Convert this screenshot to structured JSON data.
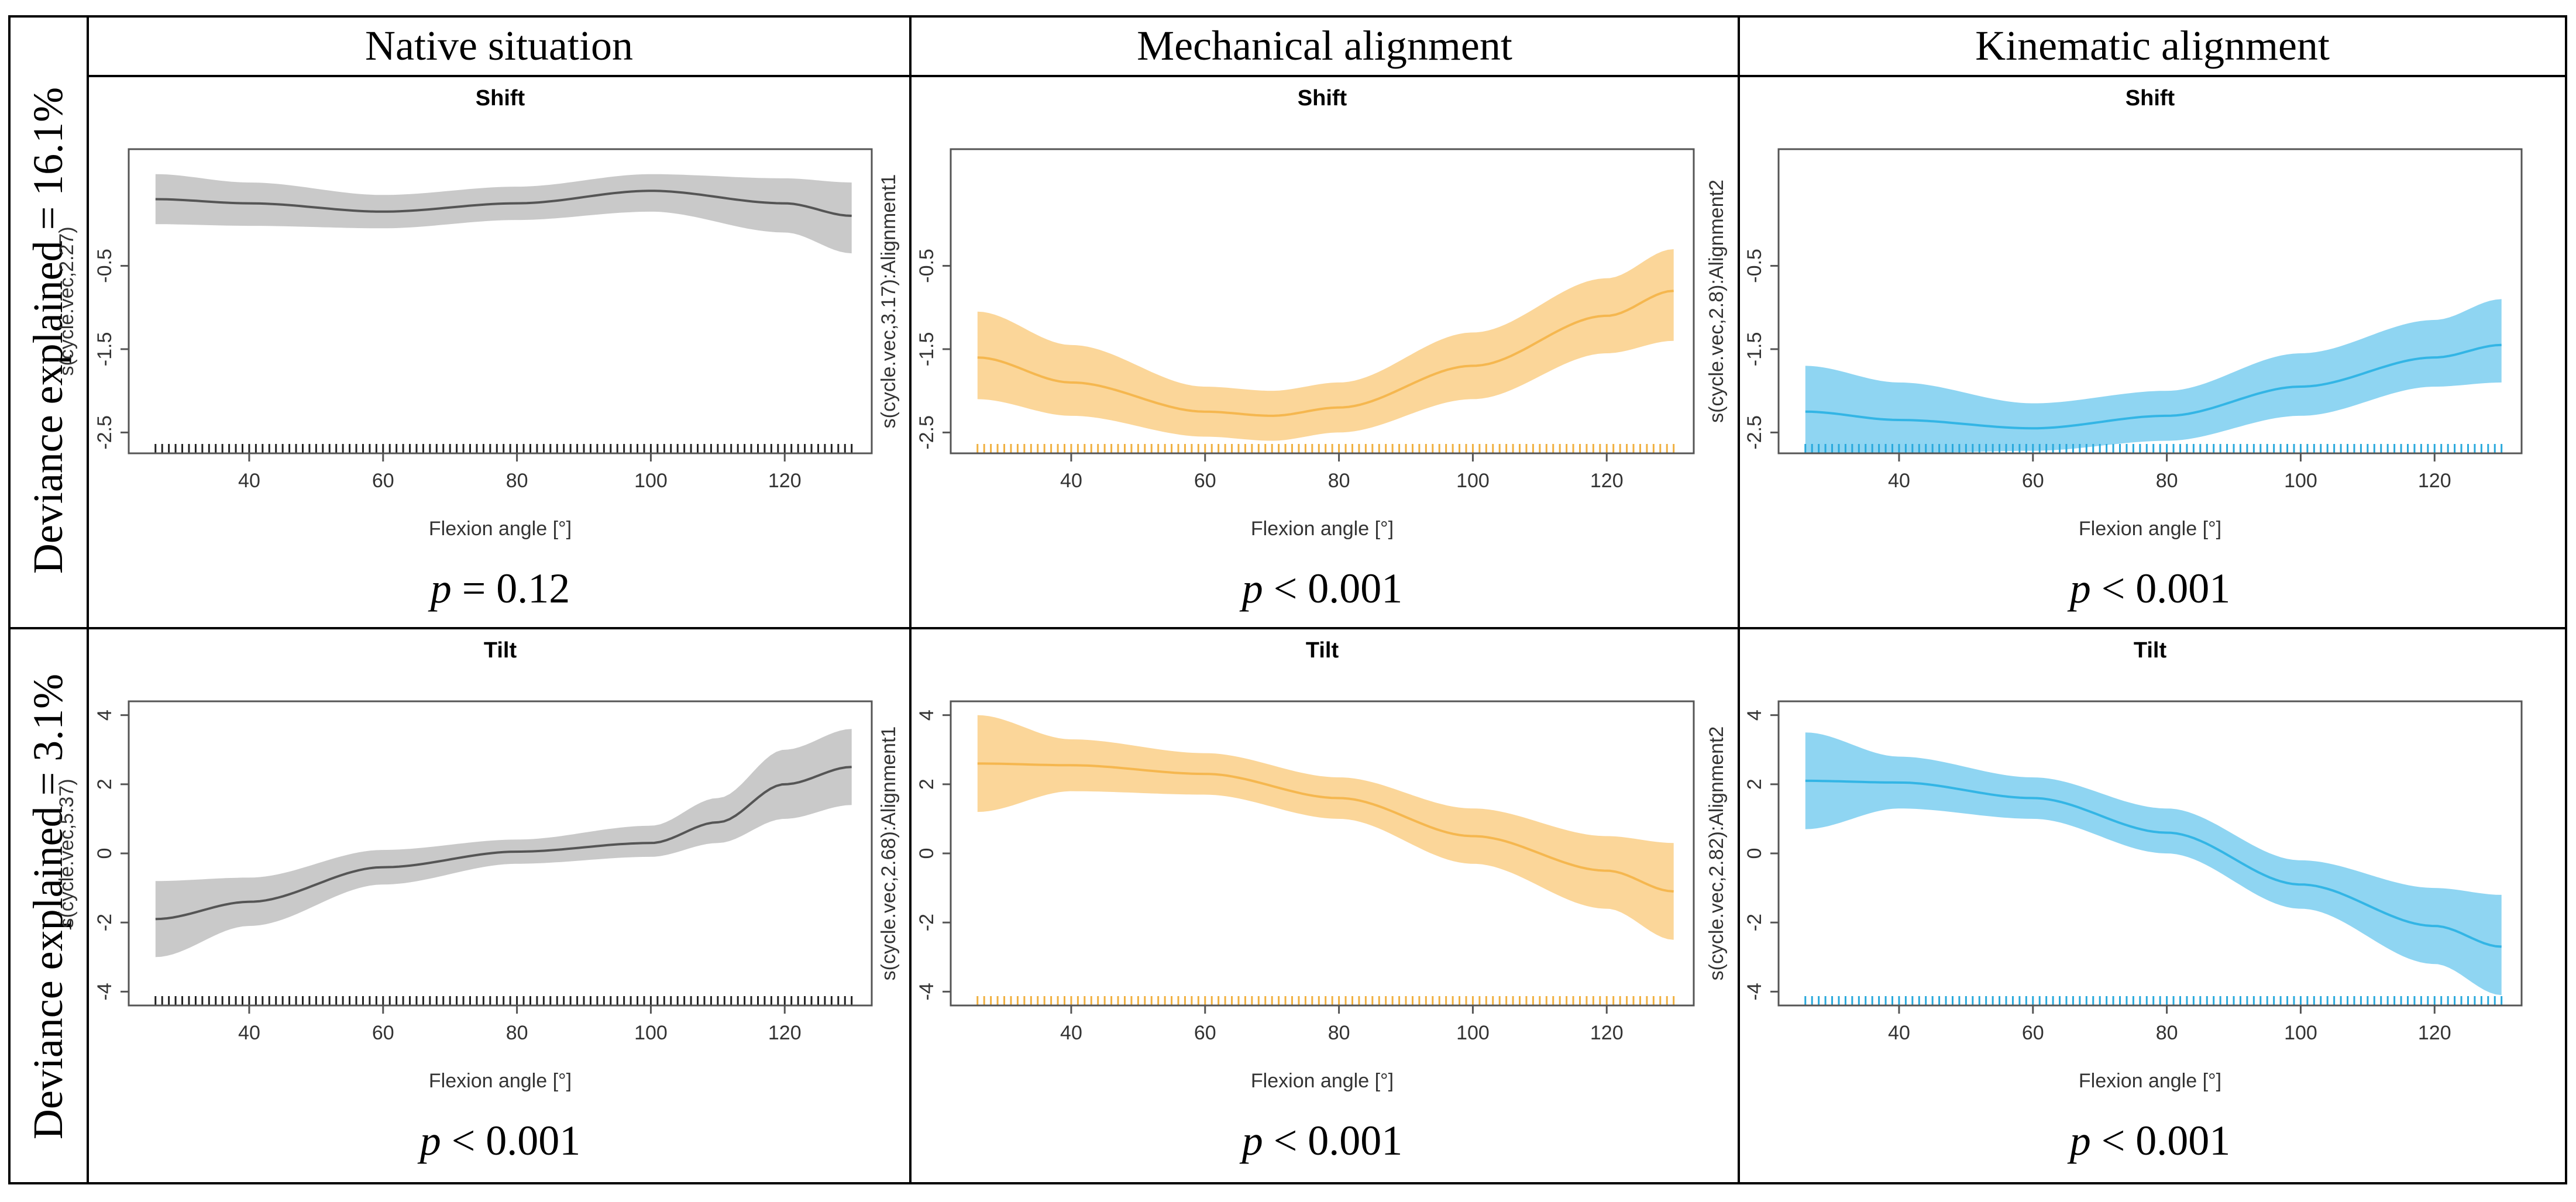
{
  "header": {
    "columns": [
      "Native situation",
      "Mechanical alignment",
      "Kinematic alignment"
    ]
  },
  "rows": [
    {
      "label": "Deviance explained = 16.1%"
    },
    {
      "label": "Deviance explained = 3.1%"
    }
  ],
  "colors": {
    "native": {
      "line": "#555555",
      "band": "#c9c9c9",
      "rug": "#222222"
    },
    "mechanical": {
      "line": "#f5b74f",
      "band": "#fbd699",
      "rug": "#f0b040"
    },
    "kinematic": {
      "line": "#33b5e5",
      "band": "#8fd5f2",
      "rug": "#29a9dc"
    }
  },
  "chart_data": [
    {
      "type": "line",
      "title": "Shift",
      "xlabel": "Flexion angle [°]",
      "ylabel": "s(cycle.vec,2.27)",
      "xlim": [
        22,
        133
      ],
      "ylim": [
        -2.75,
        0.9
      ],
      "xticks": [
        40,
        60,
        80,
        100,
        120
      ],
      "yticks": [
        -0.5,
        -1.5,
        -2.5
      ],
      "x": [
        26,
        40,
        60,
        80,
        100,
        120,
        130
      ],
      "y": [
        0.3,
        0.25,
        0.15,
        0.25,
        0.4,
        0.25,
        0.1
      ],
      "lower": [
        0.0,
        -0.02,
        -0.05,
        0.05,
        0.15,
        -0.1,
        -0.35
      ],
      "upper": [
        0.6,
        0.5,
        0.35,
        0.45,
        0.6,
        0.55,
        0.5
      ],
      "rug": true,
      "color": "native",
      "p_prefix": "=",
      "p_value": "0.12"
    },
    {
      "type": "line",
      "title": "Shift",
      "xlabel": "Flexion angle [°]",
      "ylabel": "s(cycle.vec,3.17):Alignment1",
      "xlim": [
        22,
        133
      ],
      "ylim": [
        -2.75,
        0.9
      ],
      "xticks": [
        40,
        60,
        80,
        100,
        120
      ],
      "yticks": [
        -0.5,
        -1.5,
        -2.5
      ],
      "x": [
        26,
        40,
        60,
        70,
        80,
        100,
        120,
        130
      ],
      "y": [
        -1.6,
        -1.9,
        -2.25,
        -2.3,
        -2.2,
        -1.7,
        -1.1,
        -0.8
      ],
      "lower": [
        -2.1,
        -2.3,
        -2.55,
        -2.6,
        -2.5,
        -2.1,
        -1.55,
        -1.4
      ],
      "upper": [
        -1.05,
        -1.45,
        -1.95,
        -2.0,
        -1.9,
        -1.3,
        -0.65,
        -0.3
      ],
      "rug": true,
      "color": "mechanical",
      "p_prefix": "<",
      "p_value": "0.001"
    },
    {
      "type": "line",
      "title": "Shift",
      "xlabel": "Flexion angle [°]",
      "ylabel": "s(cycle.vec,2.8):Alignment2",
      "xlim": [
        22,
        133
      ],
      "ylim": [
        -2.75,
        0.9
      ],
      "xticks": [
        40,
        60,
        80,
        100,
        120
      ],
      "yticks": [
        -0.5,
        -1.5,
        -2.5
      ],
      "x": [
        26,
        40,
        60,
        80,
        100,
        120,
        130
      ],
      "y": [
        -2.25,
        -2.35,
        -2.45,
        -2.3,
        -1.95,
        -1.6,
        -1.45
      ],
      "lower": [
        -2.75,
        -2.75,
        -2.72,
        -2.6,
        -2.3,
        -1.95,
        -1.9
      ],
      "upper": [
        -1.7,
        -1.9,
        -2.15,
        -2.0,
        -1.55,
        -1.15,
        -0.9
      ],
      "rug": true,
      "color": "kinematic",
      "p_prefix": "<",
      "p_value": "0.001"
    },
    {
      "type": "line",
      "title": "Tilt",
      "xlabel": "Flexion angle [°]",
      "ylabel": "s(cycle.vec,5.37)",
      "xlim": [
        22,
        133
      ],
      "ylim": [
        -4.4,
        4.4
      ],
      "xticks": [
        40,
        60,
        80,
        100,
        120
      ],
      "yticks": [
        4,
        2,
        0,
        -2,
        -4
      ],
      "x": [
        26,
        40,
        60,
        80,
        100,
        110,
        120,
        130
      ],
      "y": [
        -1.9,
        -1.4,
        -0.4,
        0.05,
        0.3,
        0.9,
        2.0,
        2.5
      ],
      "lower": [
        -3.0,
        -2.1,
        -0.9,
        -0.3,
        -0.1,
        0.3,
        1.0,
        1.4
      ],
      "upper": [
        -0.8,
        -0.7,
        0.1,
        0.4,
        0.8,
        1.6,
        3.0,
        3.6
      ],
      "rug": true,
      "color": "native",
      "p_prefix": "<",
      "p_value": "0.001"
    },
    {
      "type": "line",
      "title": "Tilt",
      "xlabel": "Flexion angle [°]",
      "ylabel": "s(cycle.vec,2.68):Alignment1",
      "xlim": [
        22,
        133
      ],
      "ylim": [
        -4.4,
        4.4
      ],
      "xticks": [
        40,
        60,
        80,
        100,
        120
      ],
      "yticks": [
        4,
        2,
        0,
        -2,
        -4
      ],
      "x": [
        26,
        40,
        60,
        80,
        100,
        120,
        130
      ],
      "y": [
        2.6,
        2.55,
        2.3,
        1.6,
        0.5,
        -0.5,
        -1.1
      ],
      "lower": [
        1.2,
        1.8,
        1.7,
        1.0,
        -0.3,
        -1.6,
        -2.5
      ],
      "upper": [
        4.0,
        3.3,
        2.9,
        2.2,
        1.3,
        0.5,
        0.3
      ],
      "rug": true,
      "color": "mechanical",
      "p_prefix": "<",
      "p_value": "0.001"
    },
    {
      "type": "line",
      "title": "Tilt",
      "xlabel": "Flexion angle [°]",
      "ylabel": "s(cycle.vec,2.82):Alignment2",
      "xlim": [
        22,
        133
      ],
      "ylim": [
        -4.4,
        4.4
      ],
      "xticks": [
        40,
        60,
        80,
        100,
        120
      ],
      "yticks": [
        4,
        2,
        0,
        -2,
        -4
      ],
      "x": [
        26,
        40,
        60,
        80,
        100,
        120,
        130
      ],
      "y": [
        2.1,
        2.05,
        1.6,
        0.6,
        -0.9,
        -2.1,
        -2.7
      ],
      "lower": [
        0.7,
        1.3,
        1.0,
        0.0,
        -1.6,
        -3.2,
        -4.1
      ],
      "upper": [
        3.5,
        2.8,
        2.2,
        1.3,
        -0.2,
        -1.0,
        -1.2
      ],
      "rug": true,
      "color": "kinematic",
      "p_prefix": "<",
      "p_value": "0.001"
    }
  ]
}
